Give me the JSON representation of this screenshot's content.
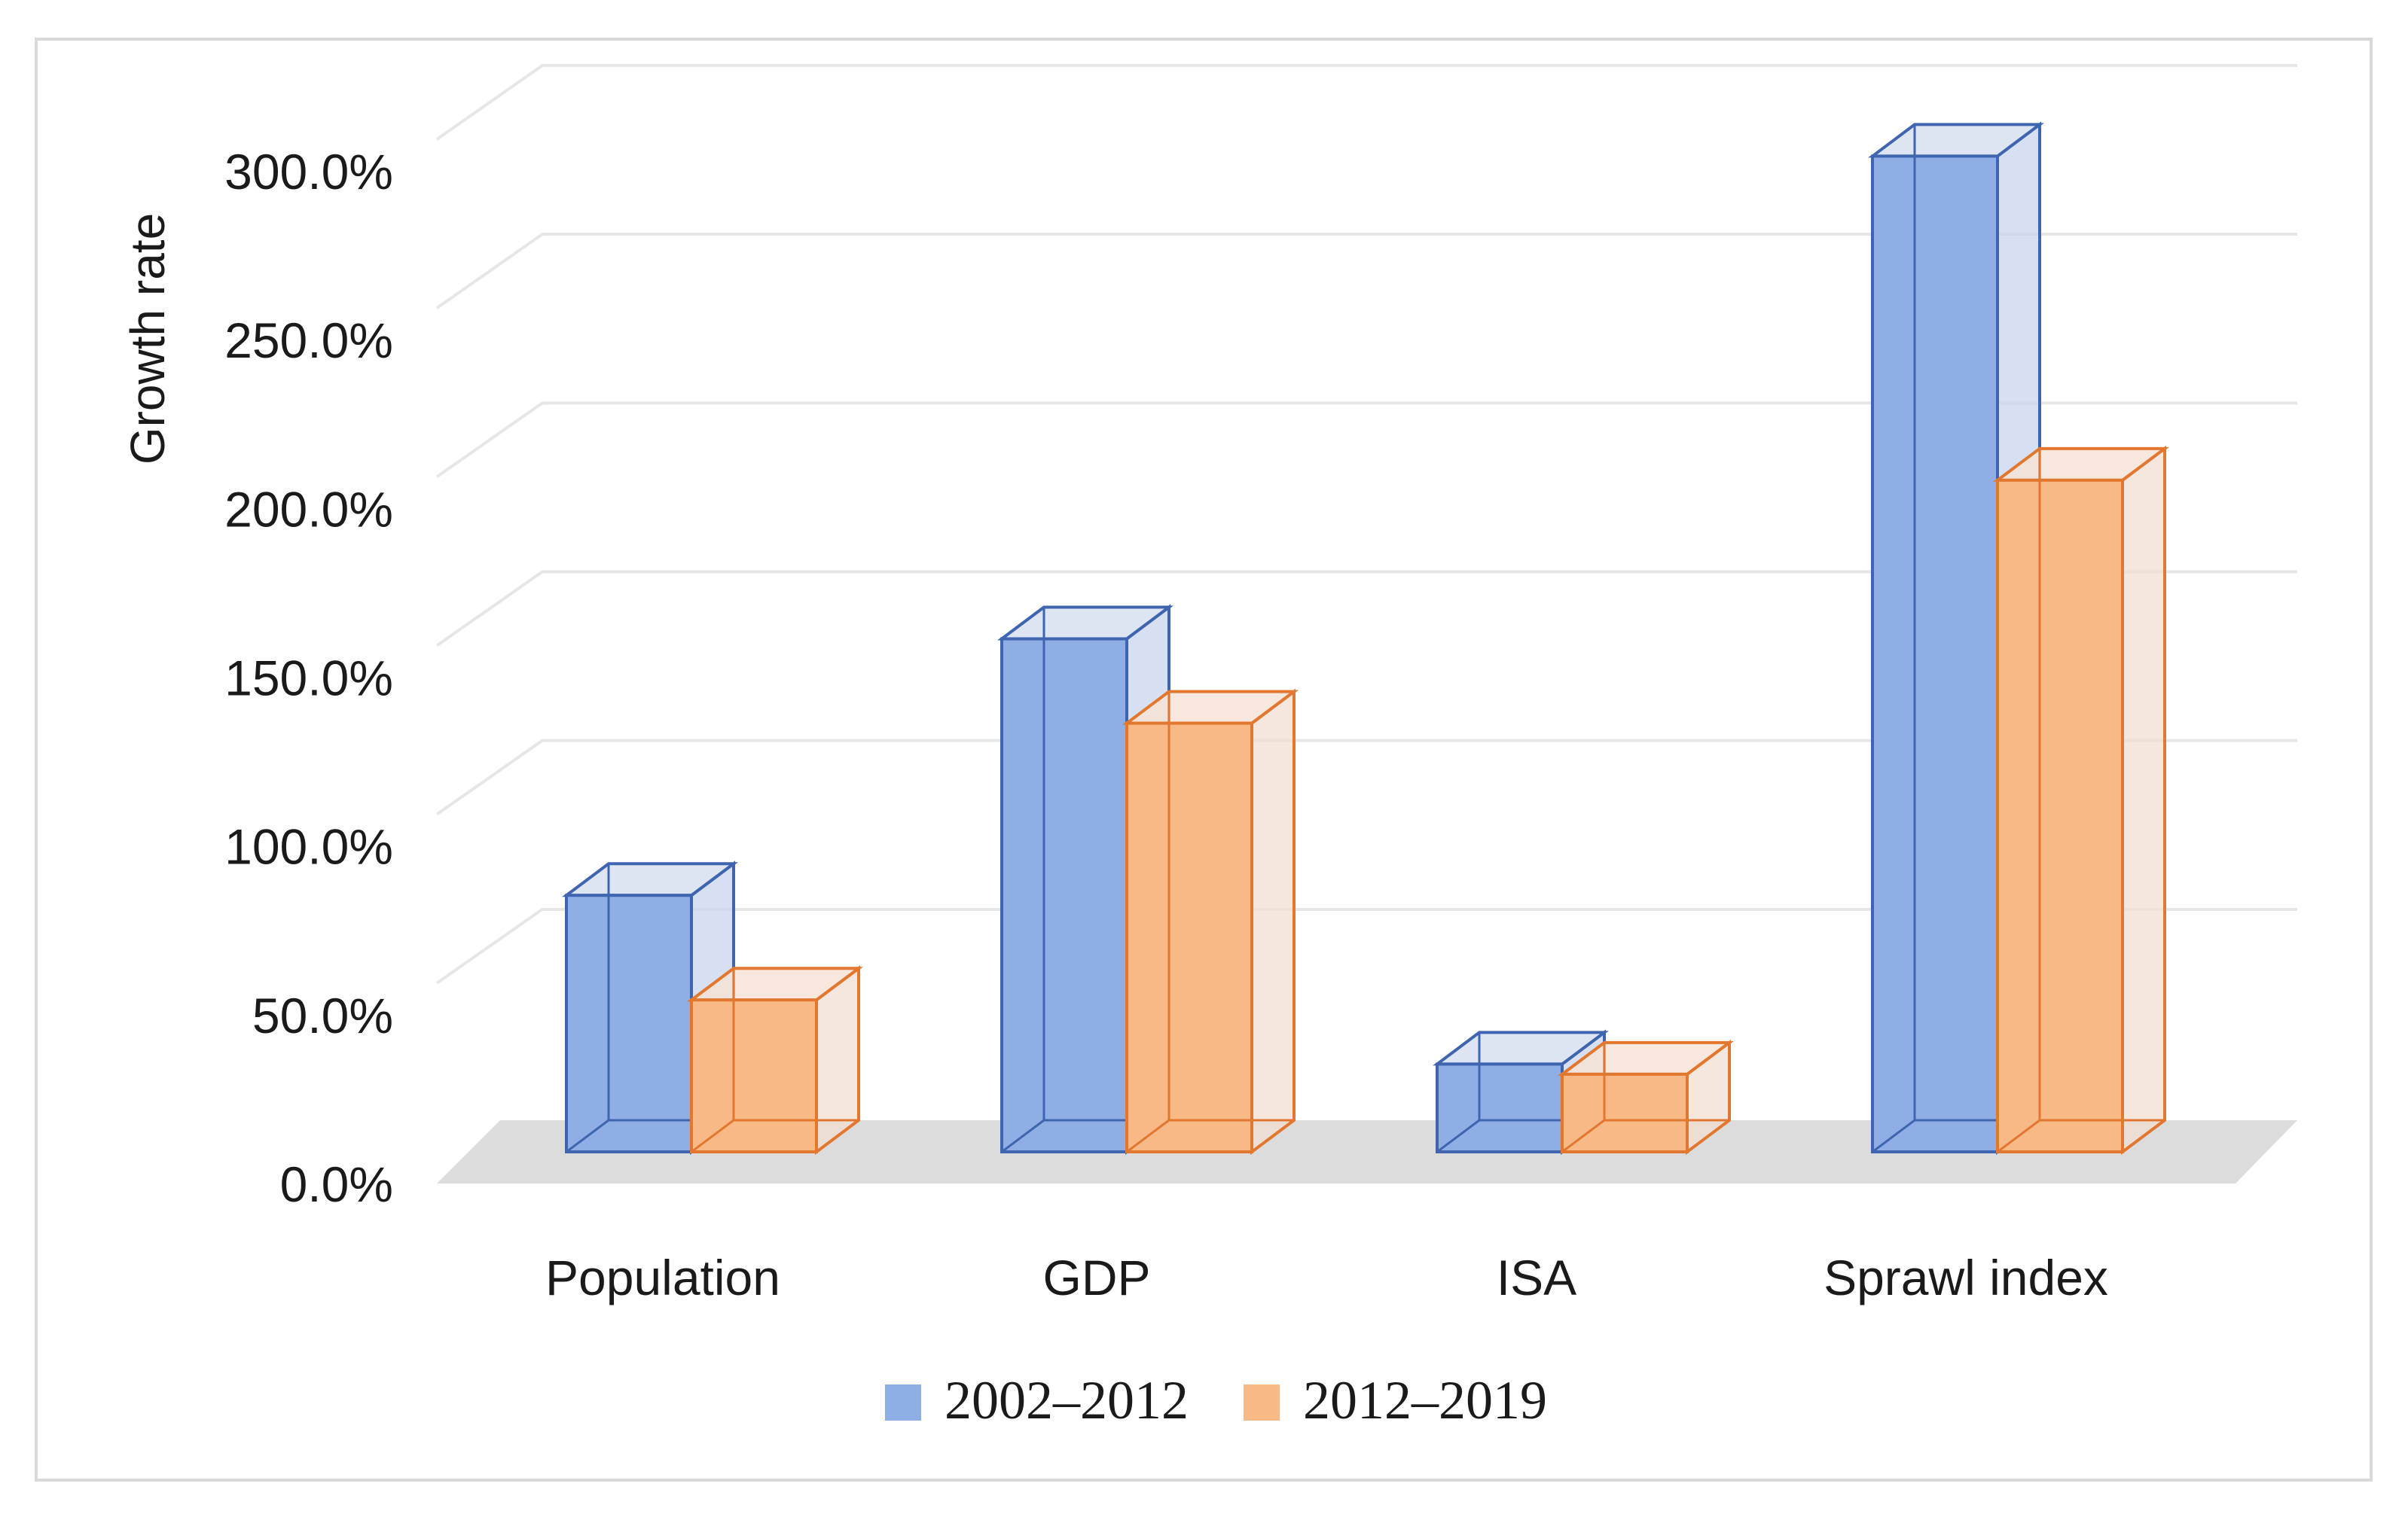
{
  "chart_data": {
    "type": "bar",
    "style": "3d-clustered-column",
    "title": "",
    "xlabel": "",
    "ylabel": "Growth rate",
    "ylim": [
      0,
      300
    ],
    "ytick_values": [
      0,
      50,
      100,
      150,
      200,
      250,
      300
    ],
    "ytick_labels": [
      "0.0%",
      "50.0%",
      "100.0%",
      "150.0%",
      "200.0%",
      "250.0%",
      "300.0%"
    ],
    "categories": [
      "Population",
      "GDP",
      "ISA",
      "Sprawl index"
    ],
    "series": [
      {
        "name": "2002–2012",
        "values": [
          76,
          152,
          26,
          295
        ],
        "face": "#8faee6",
        "side": "#c9d5ee",
        "top": "#d7e0f1",
        "edge": "#4065b0"
      },
      {
        "name": "2012–2019",
        "values": [
          45,
          127,
          23,
          199
        ],
        "face": "#f8b987",
        "side": "#f2dfd2",
        "top": "#f6e3d6",
        "edge": "#e2772f"
      }
    ],
    "legend_position": "bottom",
    "grid": true
  }
}
